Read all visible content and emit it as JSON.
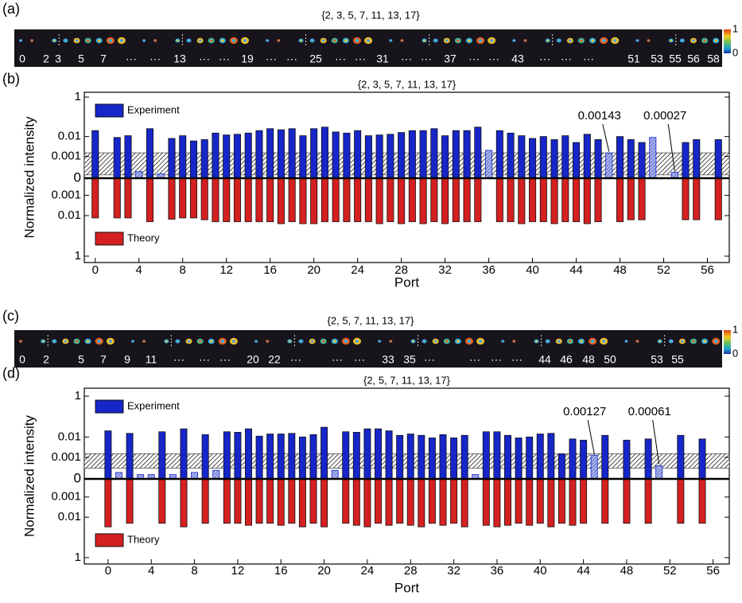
{
  "chart_data": [
    {
      "type": "image-strip",
      "panel": "(a)",
      "title": "{2, 3, 5, 7, 11, 13, 17}",
      "labels": [
        "0",
        "2",
        "3",
        "5",
        "7",
        "···",
        "···",
        "13",
        "···",
        "···",
        "19",
        "···",
        "···",
        "25",
        "···",
        "···",
        "31",
        "···",
        "···",
        "37",
        "···",
        "···",
        "43",
        "···",
        "···",
        "···",
        "51",
        "53",
        "55",
        "56",
        "58"
      ],
      "colorbar": {
        "ticks": [
          1,
          0
        ]
      }
    },
    {
      "type": "mirrored-bar",
      "panel": "(b)",
      "title": "{2, 3, 5, 7, 11, 13, 17}",
      "ylabel": "Normalized intensity",
      "xlabel": "Port",
      "x": [
        0,
        1,
        2,
        3,
        4,
        5,
        6,
        7,
        8,
        9,
        10,
        11,
        12,
        13,
        14,
        15,
        16,
        17,
        18,
        19,
        20,
        21,
        22,
        23,
        24,
        25,
        26,
        27,
        28,
        29,
        30,
        31,
        32,
        33,
        34,
        35,
        36,
        37,
        38,
        39,
        40,
        41,
        42,
        43,
        44,
        45,
        46,
        47,
        48,
        49,
        50,
        51,
        52,
        53,
        54,
        55,
        56,
        57,
        58
      ],
      "xlim": [
        -1,
        58
      ],
      "xticks": [
        0,
        4,
        8,
        12,
        16,
        20,
        24,
        28,
        32,
        36,
        40,
        44,
        48,
        52,
        56
      ],
      "yscale": "symlog",
      "linthresh": 0.001,
      "ylim": [
        0,
        1
      ],
      "yticks": [
        1,
        0.01,
        0.001,
        0
      ],
      "yticks_down": [
        0.001,
        0.01,
        1
      ],
      "noise_band": [
        0.00015,
        0.0015
      ],
      "legend": "left",
      "series": [
        {
          "name": "Experiment",
          "color": "#1626c8",
          "values": [
            0.02,
            null,
            0.009,
            0.011,
            0.0003,
            0.025,
            0.0002,
            0.008,
            0.011,
            0.006,
            0.007,
            0.015,
            0.012,
            0.013,
            0.015,
            0.02,
            0.025,
            0.022,
            0.025,
            0.011,
            0.025,
            0.03,
            0.017,
            0.015,
            0.02,
            0.011,
            0.012,
            0.013,
            0.016,
            0.02,
            0.02,
            0.025,
            0.011,
            0.02,
            0.02,
            0.03,
            0.002,
            0.02,
            0.015,
            0.011,
            0.008,
            0.01,
            0.007,
            0.011,
            0.005,
            0.013,
            0.007,
            0.00143,
            0.01,
            0.007,
            0.005,
            0.009,
            null,
            0.00027,
            0.005,
            0.007,
            null,
            0.007,
            null
          ]
        },
        {
          "name": "Theory",
          "color": "#d42020",
          "direction": "down",
          "values": [
            0.013,
            null,
            0.013,
            0.013,
            null,
            0.02,
            null,
            0.015,
            0.013,
            0.013,
            0.016,
            0.02,
            0.02,
            0.02,
            0.02,
            0.02,
            0.02,
            0.025,
            0.02,
            0.025,
            0.025,
            0.02,
            0.02,
            0.02,
            0.02,
            0.02,
            0.025,
            0.02,
            0.025,
            0.02,
            0.025,
            0.02,
            0.025,
            0.02,
            0.02,
            0.02,
            null,
            0.02,
            0.02,
            0.025,
            0.02,
            0.02,
            0.025,
            0.02,
            0.02,
            0.025,
            0.02,
            null,
            0.02,
            0.016,
            0.016,
            null,
            null,
            null,
            0.016,
            0.016,
            null,
            0.016,
            null
          ]
        }
      ],
      "annotations": [
        "0.00143",
        "0.00027"
      ]
    },
    {
      "type": "image-strip",
      "panel": "(c)",
      "title": "{2, 5, 7, 11, 13, 17}",
      "labels": [
        "0",
        "2",
        "5",
        "7",
        "9",
        "11",
        "···",
        "···",
        "···",
        "20",
        "22",
        "···",
        "···",
        "···",
        "33",
        "35",
        "···",
        "···",
        "···",
        "···",
        "44",
        "46",
        "48",
        "50",
        "53",
        "55"
      ],
      "colorbar": {
        "ticks": [
          1,
          0
        ]
      }
    },
    {
      "type": "mirrored-bar",
      "panel": "(d)",
      "title": "{2, 5, 7, 11, 13, 17}",
      "ylabel": "Normalized intensity",
      "xlabel": "Port",
      "x": [
        0,
        1,
        2,
        3,
        4,
        5,
        6,
        7,
        8,
        9,
        10,
        11,
        12,
        13,
        14,
        15,
        16,
        17,
        18,
        19,
        20,
        21,
        22,
        23,
        24,
        25,
        26,
        27,
        28,
        29,
        30,
        31,
        32,
        33,
        34,
        35,
        36,
        37,
        38,
        39,
        40,
        41,
        42,
        43,
        44,
        45,
        46,
        47,
        48,
        49,
        50,
        51,
        52,
        53,
        54,
        55
      ],
      "xlim": [
        -2.2,
        57.5
      ],
      "xticks": [
        0,
        4,
        8,
        12,
        16,
        20,
        24,
        28,
        32,
        36,
        40,
        44,
        48,
        52,
        56
      ],
      "yscale": "symlog",
      "linthresh": 0.001,
      "ylim": [
        0,
        1
      ],
      "yticks": [
        1,
        0.01,
        0.001,
        0
      ],
      "yticks_down": [
        0.001,
        0.01,
        1
      ],
      "noise_band": [
        0.0005,
        0.0015
      ],
      "legend": "left",
      "series": [
        {
          "name": "Experiment",
          "color": "#1626c8",
          "values": [
            0.02,
            0.0003,
            0.015,
            0.0002,
            0.0002,
            0.018,
            0.0002,
            0.025,
            0.0003,
            0.013,
            0.0004,
            0.018,
            0.017,
            0.025,
            0.011,
            0.014,
            0.014,
            0.015,
            0.01,
            0.013,
            0.03,
            0.0004,
            0.018,
            0.017,
            0.025,
            0.025,
            0.02,
            0.012,
            0.014,
            0.012,
            0.009,
            0.013,
            0.009,
            0.012,
            0.0002,
            0.018,
            0.018,
            0.012,
            0.009,
            0.01,
            0.014,
            0.015,
            0.0015,
            0.008,
            0.007,
            0.00127,
            0.012,
            null,
            0.007,
            null,
            0.008,
            0.00061,
            null,
            0.012,
            null,
            0.008
          ]
        },
        {
          "name": "Theory",
          "color": "#d42020",
          "direction": "down",
          "values": [
            0.03,
            null,
            0.02,
            null,
            null,
            0.02,
            null,
            0.03,
            null,
            0.02,
            null,
            0.02,
            0.02,
            0.025,
            0.02,
            0.02,
            0.025,
            0.02,
            0.03,
            0.02,
            0.03,
            null,
            0.02,
            0.025,
            0.03,
            0.02,
            0.025,
            0.02,
            0.025,
            0.03,
            0.02,
            0.025,
            0.02,
            0.03,
            null,
            0.025,
            0.03,
            0.025,
            0.02,
            0.025,
            0.02,
            0.03,
            0.02,
            0.025,
            0.02,
            null,
            0.02,
            null,
            0.02,
            null,
            0.02,
            null,
            null,
            0.02,
            null,
            0.02
          ]
        }
      ],
      "annotations": [
        "0.00127",
        "0.00061"
      ]
    }
  ]
}
